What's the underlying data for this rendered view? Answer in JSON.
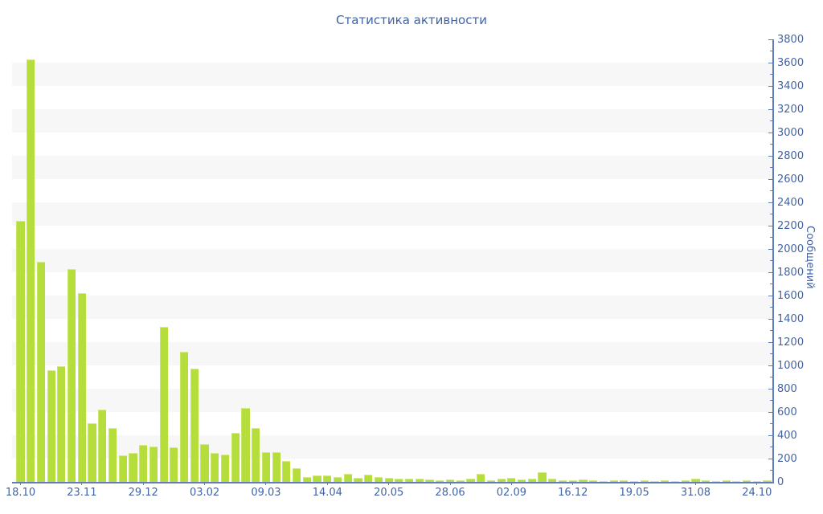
{
  "page": {
    "background": "#ffffff"
  },
  "chart_data": {
    "type": "bar",
    "title": "Статистика активности",
    "xlabel": "",
    "ylabel": "Сообщений",
    "ylim": [
      0,
      3800
    ],
    "y_major_step": 200,
    "y_minor_step": 100,
    "legend": "none",
    "grid": "alternating horizontal gray bands every 200 units",
    "x_tick_labels": [
      "18.10",
      "23.11",
      "29.12",
      "03.02",
      "09.03",
      "14.04",
      "20.05",
      "28.06",
      "02.09",
      "16.12",
      "19.05",
      "31.08",
      "24.10"
    ],
    "x_tick_every_n_bars": 6,
    "values": [
      2240,
      3630,
      1890,
      960,
      995,
      1830,
      1620,
      505,
      620,
      465,
      230,
      250,
      320,
      305,
      1330,
      300,
      1115,
      970,
      325,
      245,
      235,
      420,
      635,
      460,
      255,
      255,
      180,
      120,
      40,
      55,
      55,
      40,
      70,
      35,
      60,
      40,
      32,
      25,
      25,
      25,
      20,
      15,
      18,
      14,
      25,
      70,
      14,
      25,
      32,
      18,
      25,
      80,
      25,
      14,
      14,
      18,
      14,
      9,
      14,
      14,
      9,
      14,
      9,
      14,
      9,
      14,
      25,
      14,
      9,
      14,
      9,
      14,
      9,
      14
    ],
    "colors": {
      "bar": "#b5dd3c",
      "bar_edge_light": "#d5ec86",
      "axis_line": "#607eb8",
      "tick_text": "#4263a6",
      "title_text": "#3f62a8",
      "band_gray": "#f7f7f7",
      "background": "#ffffff"
    }
  }
}
